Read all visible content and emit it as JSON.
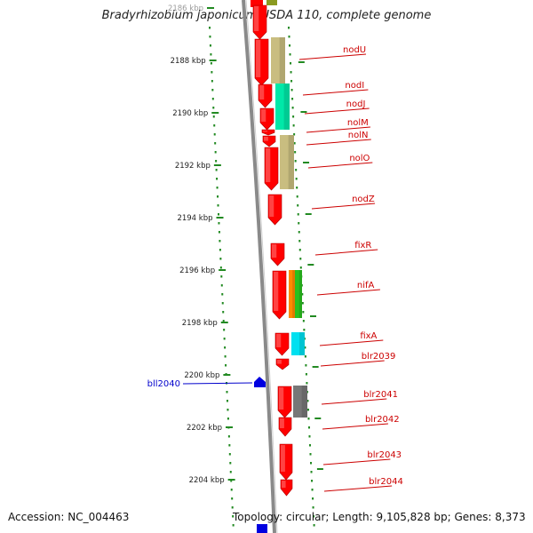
{
  "title": "Bradyrhizobium japonicum USDA 110, complete genome",
  "footer": {
    "accession": "Accession: NC_004463",
    "topology": "Topology: circular; Length: 9,105,828 bp; Genes: 8,373"
  },
  "colors": {
    "gene_red": "#ff0000",
    "olive": "#c9bd80",
    "teal": "#00e8a8",
    "orange": "#ff8a00",
    "green": "#29c11e",
    "cyan": "#00e0f0",
    "gray": "#777777",
    "blue": "#0000e0",
    "tick_green": "#228a22",
    "label_red": "#cc0000",
    "label_blue": "#0000cc",
    "backbone": "#8a8a8a"
  },
  "scale": {
    "unit": "kbp",
    "labels": [
      {
        "kbp": 2186,
        "text": "2186 kbp",
        "faded": true
      },
      {
        "kbp": 2188,
        "text": "2188 kbp"
      },
      {
        "kbp": 2190,
        "text": "2190 kbp"
      },
      {
        "kbp": 2192,
        "text": "2192 kbp"
      },
      {
        "kbp": 2194,
        "text": "2194 kbp"
      },
      {
        "kbp": 2196,
        "text": "2196 kbp"
      },
      {
        "kbp": 2198,
        "text": "2198 kbp"
      },
      {
        "kbp": 2200,
        "text": "2200 kbp"
      },
      {
        "kbp": 2202,
        "text": "2202 kbp"
      },
      {
        "kbp": 2204,
        "text": "2204 kbp"
      }
    ]
  },
  "genes_right": [
    {
      "name": "nodU"
    },
    {
      "name": "nodI"
    },
    {
      "name": "nodJ"
    },
    {
      "name": "nolM"
    },
    {
      "name": "nolN"
    },
    {
      "name": "nolO"
    },
    {
      "name": "nodZ"
    },
    {
      "name": "fixR"
    },
    {
      "name": "nifA"
    },
    {
      "name": "fixA"
    },
    {
      "name": "blr2039"
    },
    {
      "name": "blr2041"
    },
    {
      "name": "blr2042"
    },
    {
      "name": "blr2043"
    },
    {
      "name": "blr2044"
    }
  ],
  "genes_left": [
    {
      "name": "bll2040"
    }
  ]
}
